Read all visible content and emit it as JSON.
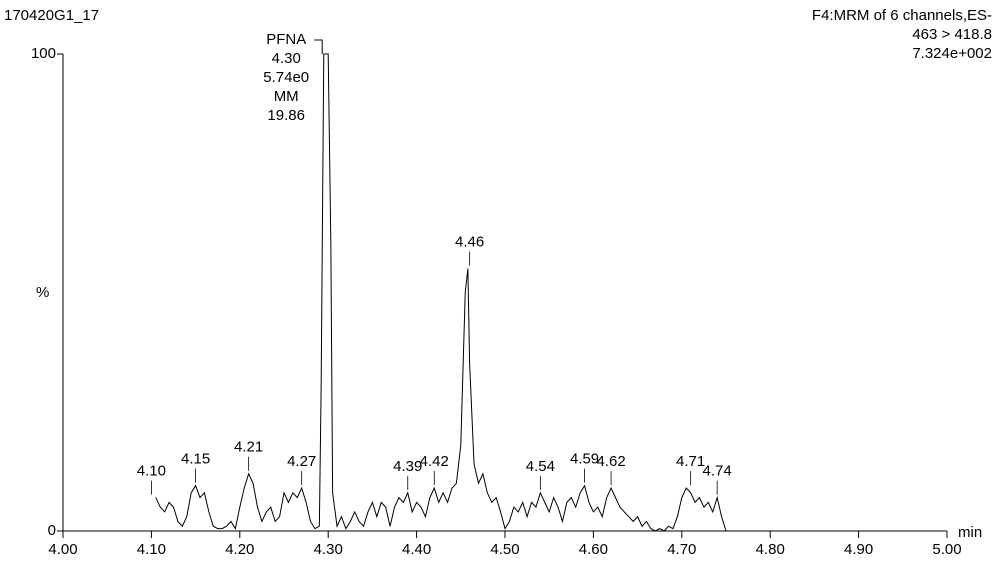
{
  "chart_data": {
    "type": "line",
    "title": "170420G1_17",
    "subtitle": [
      "F4:MRM of 6 channels,ES-",
      "463 > 418.8",
      "7.324e+002"
    ],
    "x_label": "min",
    "y_label": "%",
    "xlim": [
      4.0,
      5.0
    ],
    "ylim": [
      0,
      100
    ],
    "xticks": [
      {
        "value": 4.0,
        "label": "4.00"
      },
      {
        "value": 4.1,
        "label": "4.10"
      },
      {
        "value": 4.2,
        "label": "4.20"
      },
      {
        "value": 4.3,
        "label": "4.30"
      },
      {
        "value": 4.4,
        "label": "4.40"
      },
      {
        "value": 4.5,
        "label": "4.50"
      },
      {
        "value": 4.6,
        "label": "4.60"
      },
      {
        "value": 4.7,
        "label": "4.70"
      },
      {
        "value": 4.8,
        "label": "4.80"
      },
      {
        "value": 4.9,
        "label": "4.90"
      },
      {
        "value": 5.0,
        "label": "5.00"
      }
    ],
    "yticks": [
      0,
      100
    ],
    "color": "#000000",
    "x": [
      4.105,
      4.11,
      4.115,
      4.12,
      4.125,
      4.13,
      4.135,
      4.14,
      4.145,
      4.15,
      4.155,
      4.16,
      4.165,
      4.17,
      4.175,
      4.18,
      4.185,
      4.19,
      4.195,
      4.2,
      4.205,
      4.21,
      4.215,
      4.22,
      4.225,
      4.23,
      4.235,
      4.24,
      4.245,
      4.25,
      4.255,
      4.26,
      4.265,
      4.27,
      4.275,
      4.28,
      4.285,
      4.29,
      4.292,
      4.295,
      4.3,
      4.303,
      4.305,
      4.31,
      4.315,
      4.32,
      4.325,
      4.33,
      4.335,
      4.34,
      4.345,
      4.35,
      4.355,
      4.36,
      4.365,
      4.37,
      4.375,
      4.38,
      4.385,
      4.39,
      4.395,
      4.4,
      4.405,
      4.41,
      4.415,
      4.42,
      4.425,
      4.43,
      4.435,
      4.44,
      4.445,
      4.45,
      4.455,
      4.458,
      4.46,
      4.465,
      4.47,
      4.475,
      4.48,
      4.485,
      4.49,
      4.495,
      4.5,
      4.505,
      4.51,
      4.515,
      4.52,
      4.525,
      4.53,
      4.535,
      4.54,
      4.545,
      4.55,
      4.555,
      4.56,
      4.565,
      4.57,
      4.575,
      4.58,
      4.585,
      4.59,
      4.595,
      4.6,
      4.605,
      4.61,
      4.615,
      4.62,
      4.625,
      4.63,
      4.635,
      4.64,
      4.645,
      4.65,
      4.655,
      4.66,
      4.665,
      4.67,
      4.675,
      4.68,
      4.685,
      4.69,
      4.695,
      4.7,
      4.705,
      4.71,
      4.715,
      4.72,
      4.725,
      4.73,
      4.735,
      4.74,
      4.745,
      4.75
    ],
    "values": [
      7,
      5,
      4,
      6,
      5,
      2,
      1,
      3,
      8,
      9.5,
      7,
      8,
      4,
      1,
      0.5,
      0.5,
      1,
      2,
      0.5,
      5,
      9,
      12,
      10,
      5,
      2,
      4,
      5,
      2,
      3,
      8,
      6,
      8,
      7,
      9,
      6,
      2,
      0.5,
      1,
      30,
      100,
      100,
      60,
      8,
      1,
      3,
      0.5,
      2,
      4,
      2,
      1,
      4,
      6,
      3,
      6,
      5,
      1,
      5,
      7,
      6,
      8,
      4,
      6,
      5,
      3,
      7,
      9,
      6,
      8,
      6,
      9,
      10,
      18,
      50,
      55,
      35,
      14,
      10,
      12,
      8,
      6,
      7,
      4,
      0.5,
      2,
      5,
      4,
      6,
      3,
      6,
      5,
      8,
      6,
      4,
      7,
      5,
      2,
      6,
      7,
      5,
      8,
      9.5,
      6,
      4,
      5,
      3,
      7,
      9,
      7,
      5,
      4,
      3,
      2,
      3,
      1,
      2,
      0.5,
      0,
      0.5,
      0,
      1,
      0.5,
      3,
      7,
      9,
      8,
      6,
      7,
      5,
      6,
      4,
      7,
      3,
      0
    ],
    "main_peak": {
      "x": 4.3,
      "y": 100,
      "lines": [
        "PFNA",
        "4.30",
        "5.74e0",
        "MM",
        "19.86"
      ]
    },
    "peak_labels": [
      {
        "x": 4.1,
        "label": "4.10",
        "y": 7
      },
      {
        "x": 4.15,
        "label": "4.15",
        "y": 9.5
      },
      {
        "x": 4.21,
        "label": "4.21",
        "y": 12
      },
      {
        "x": 4.27,
        "label": "4.27",
        "y": 9
      },
      {
        "x": 4.39,
        "label": "4.39",
        "y": 8
      },
      {
        "x": 4.42,
        "label": "4.42",
        "y": 9
      },
      {
        "x": 4.46,
        "label": "4.46",
        "y": 55
      },
      {
        "x": 4.54,
        "label": "4.54",
        "y": 8
      },
      {
        "x": 4.59,
        "label": "4.59",
        "y": 9.5
      },
      {
        "x": 4.62,
        "label": "4.62",
        "y": 9
      },
      {
        "x": 4.71,
        "label": "4.71",
        "y": 9
      },
      {
        "x": 4.74,
        "label": "4.74",
        "y": 7
      }
    ]
  }
}
